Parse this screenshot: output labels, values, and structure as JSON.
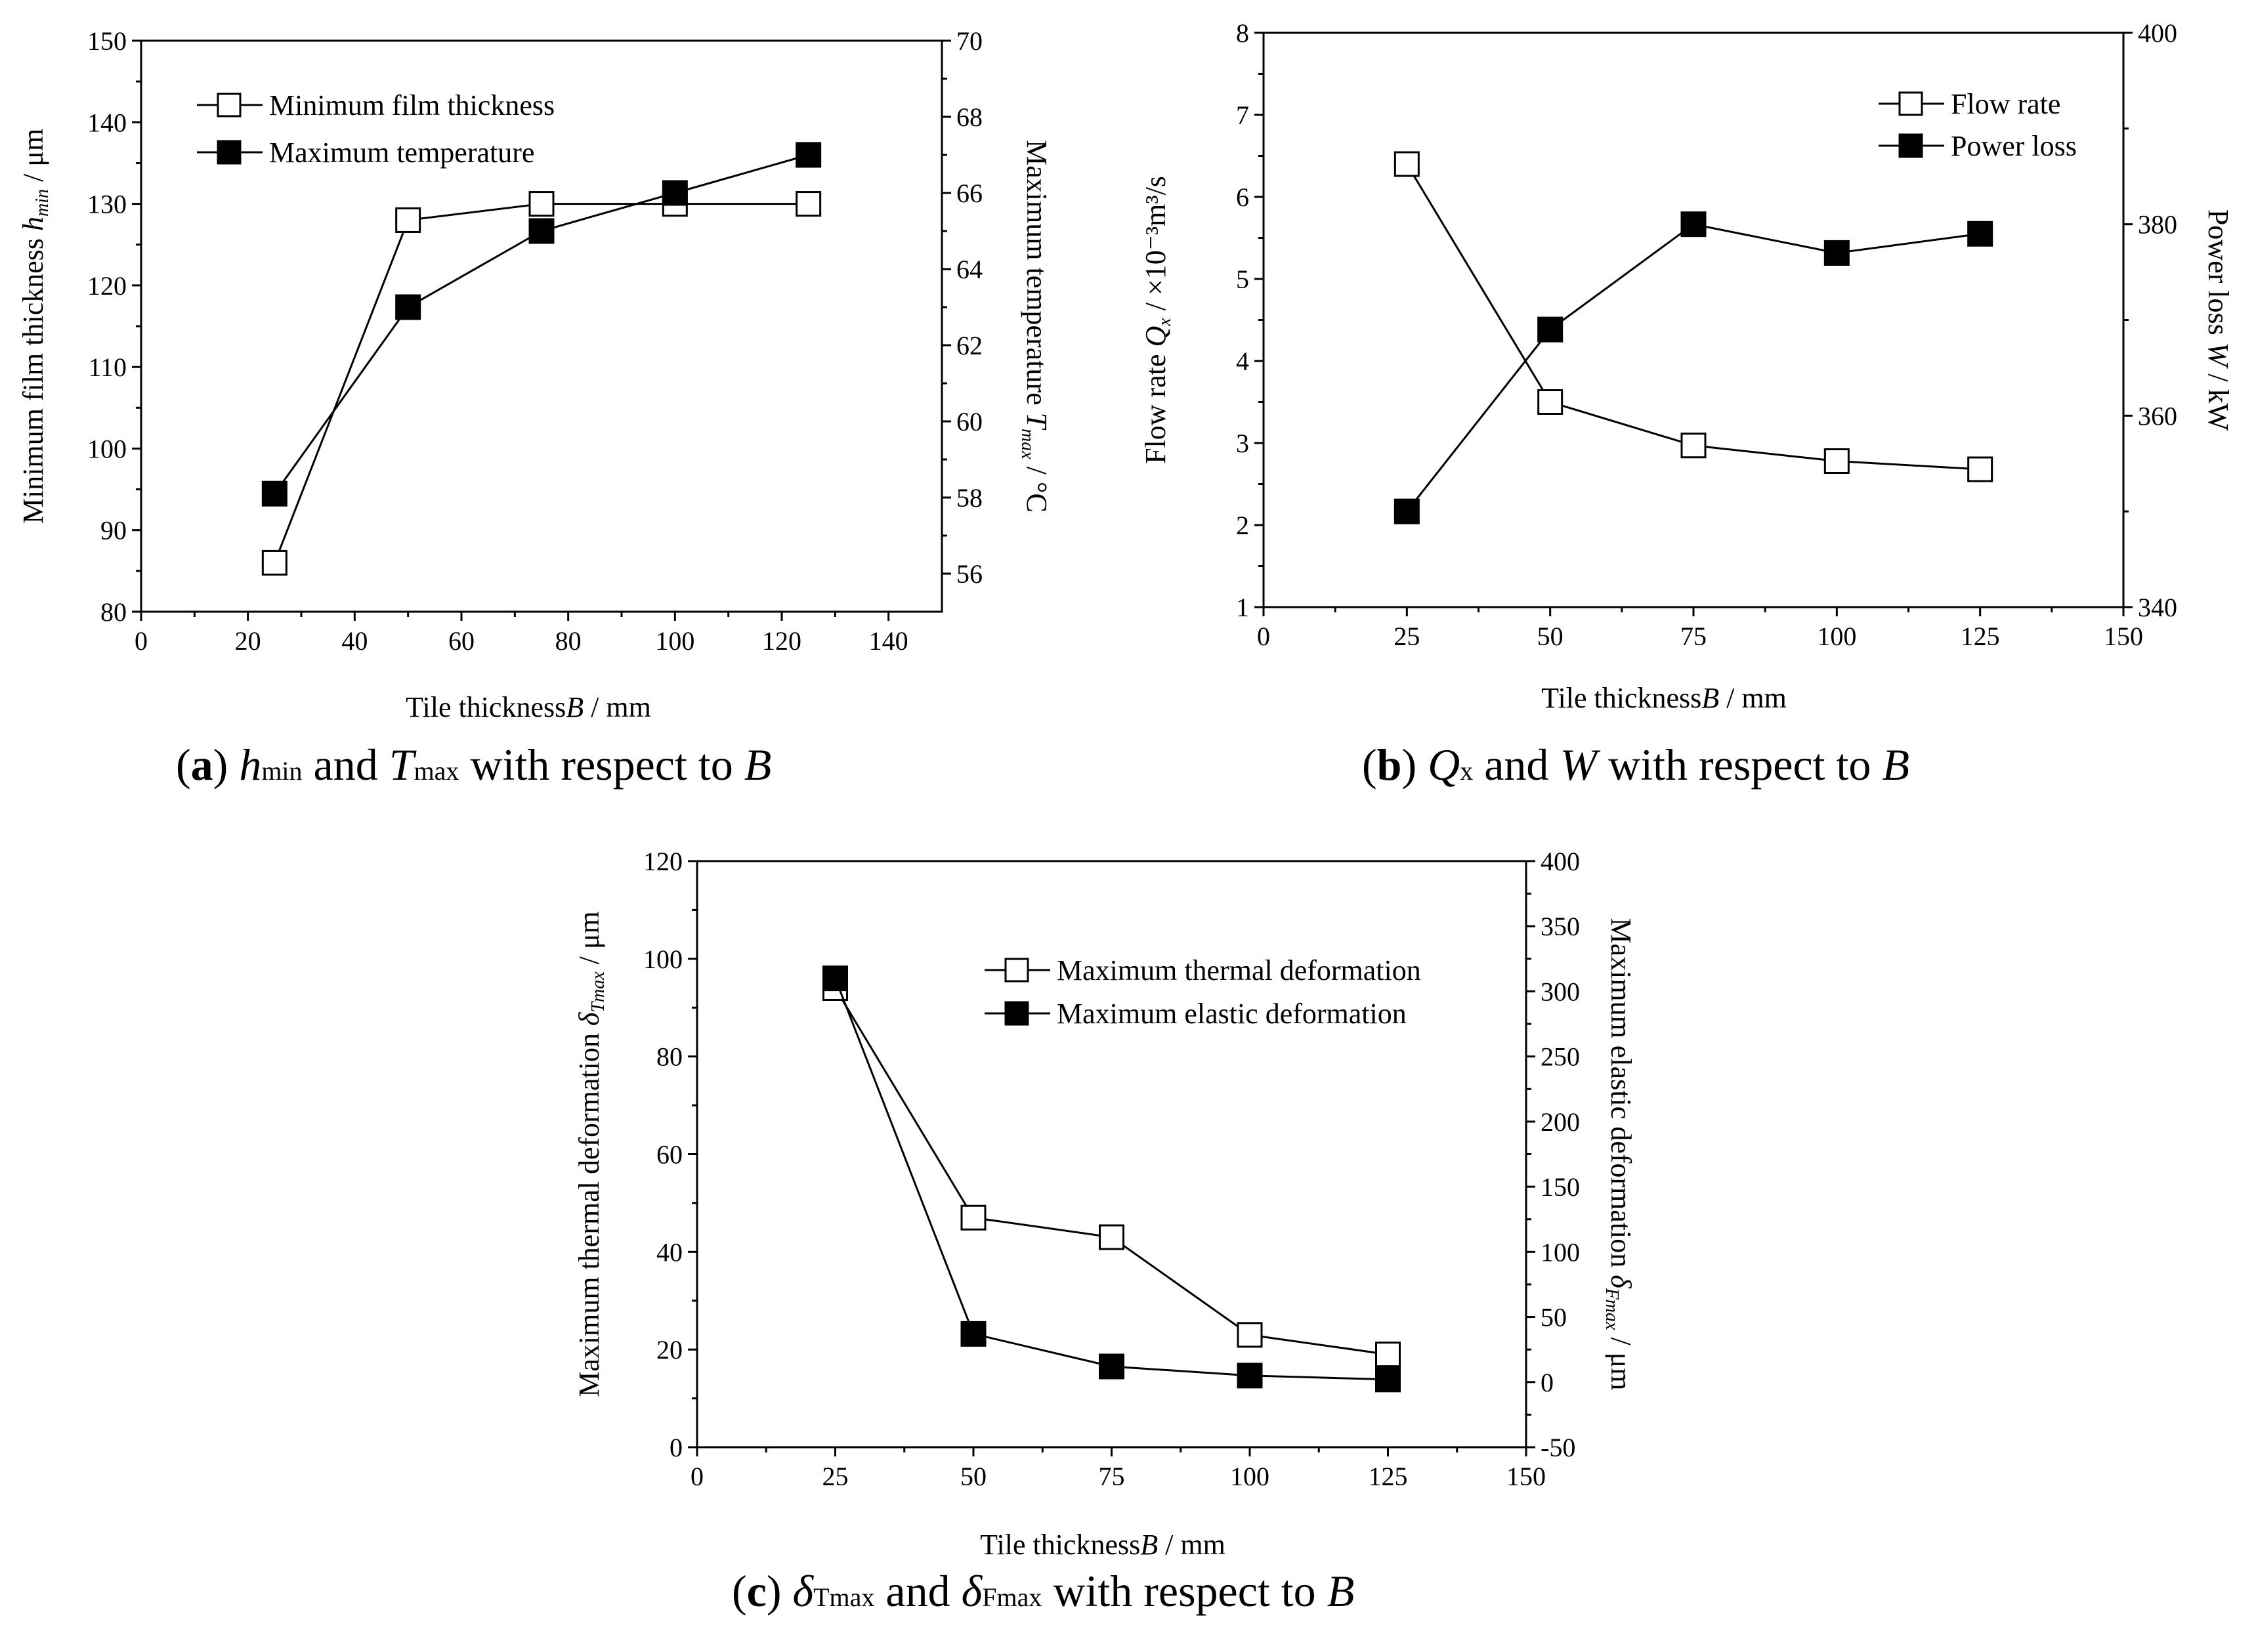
{
  "chart_data": [
    {
      "id": "a",
      "type": "line",
      "caption": {
        "prefix": "(",
        "letter": "a",
        "mid": ") ",
        "v1": "h",
        "v1sub": "min",
        "and": " and ",
        "v2": "T",
        "v2sub": "max",
        "tail": " with respect to ",
        "v3": "B"
      },
      "xlabel": {
        "text": "Tile thickness",
        "var": "B",
        "unit": " / mm"
      },
      "ylabel_left": {
        "text": "Minimum film thickness ",
        "var": "h",
        "sub": "min",
        "unit": " /  μm"
      },
      "ylabel_right": {
        "text": "Maximum temperature ",
        "var": "T",
        "sub": "max",
        "unit": " / °C"
      },
      "xlim": [
        0,
        150
      ],
      "xticks": [
        0,
        20,
        40,
        60,
        80,
        100,
        120,
        140
      ],
      "ylim_left": [
        80,
        150
      ],
      "yticks_left": [
        80,
        90,
        100,
        110,
        120,
        130,
        140,
        150
      ],
      "ylim_right": [
        55,
        70
      ],
      "yticks_right": [
        56,
        58,
        60,
        62,
        64,
        66,
        68,
        70
      ],
      "legend": [
        "Minimum film thickness",
        "Maximum temperature"
      ],
      "series": [
        {
          "name": "Minimum film thickness",
          "axis": "left",
          "marker": "open",
          "x": [
            25,
            50,
            75,
            100,
            125
          ],
          "y": [
            86,
            128,
            130,
            130,
            130
          ]
        },
        {
          "name": "Maximum temperature",
          "axis": "right",
          "marker": "filled",
          "x": [
            25,
            50,
            75,
            100,
            125
          ],
          "y": [
            58.1,
            63,
            65,
            66,
            67
          ]
        }
      ]
    },
    {
      "id": "b",
      "type": "line",
      "caption": {
        "prefix": "(",
        "letter": "b",
        "mid": ") ",
        "v1": "Q",
        "v1sub": "x",
        "and": " and ",
        "v2": "W",
        "v2sub": "",
        "tail": " with respect to ",
        "v3": "B"
      },
      "xlabel": {
        "text": "Tile thickness",
        "var": "B",
        "unit": " / mm"
      },
      "ylabel_left": {
        "text": "Flow rate ",
        "var": "Q",
        "sub": "x",
        "unit": " /  ×10⁻³m³/s"
      },
      "ylabel_right": {
        "text": "Power loss ",
        "var": "W",
        "sub": "",
        "unit": " / kW"
      },
      "xlim": [
        0,
        150
      ],
      "xticks": [
        0,
        25,
        50,
        75,
        100,
        125,
        150
      ],
      "ylim_left": [
        1,
        8
      ],
      "yticks_left": [
        1,
        2,
        3,
        4,
        5,
        6,
        7,
        8
      ],
      "ylim_right": [
        340,
        400
      ],
      "yticks_right": [
        340,
        360,
        380,
        400
      ],
      "legend": [
        "Flow rate",
        "Power loss"
      ],
      "series": [
        {
          "name": "Flow rate",
          "axis": "left",
          "marker": "open",
          "x": [
            25,
            50,
            75,
            100,
            125
          ],
          "y": [
            6.4,
            3.5,
            2.97,
            2.78,
            2.68
          ]
        },
        {
          "name": "Power loss",
          "axis": "right",
          "marker": "filled",
          "x": [
            25,
            50,
            75,
            100,
            125
          ],
          "y": [
            350,
            369,
            380,
            377,
            379
          ]
        }
      ]
    },
    {
      "id": "c",
      "type": "line",
      "caption": {
        "prefix": "(",
        "letter": "c",
        "mid": ") ",
        "v1": "δ",
        "v1sub": "Tmax",
        "and": " and ",
        "v2": "δ",
        "v2sub": "Fmax",
        "tail": " with respect to ",
        "v3": "B"
      },
      "xlabel": {
        "text": "Tile thickness",
        "var": "B",
        "unit": " / mm"
      },
      "ylabel_left": {
        "text": "Maximum thermal deformation ",
        "var": "δ",
        "sub": "Tmax",
        "unit": " /  μm"
      },
      "ylabel_right": {
        "text": "Maximum elastic deformation ",
        "var": "δ",
        "sub": "Fmax",
        "unit": " /  μm"
      },
      "xlim": [
        0,
        150
      ],
      "xticks": [
        0,
        25,
        50,
        75,
        100,
        125,
        150
      ],
      "ylim_left": [
        0,
        120
      ],
      "yticks_left": [
        0,
        20,
        40,
        60,
        80,
        100,
        120
      ],
      "ylim_right": [
        -50,
        400
      ],
      "yticks_right": [
        -50,
        0,
        50,
        100,
        150,
        200,
        250,
        300,
        350,
        400
      ],
      "legend": [
        "Maximum thermal deformation",
        "Maximum elastic deformation"
      ],
      "series": [
        {
          "name": "Maximum thermal deformation",
          "axis": "left",
          "marker": "open",
          "x": [
            25,
            50,
            75,
            100,
            125
          ],
          "y": [
            94,
            47,
            43,
            23,
            19
          ]
        },
        {
          "name": "Maximum elastic deformation",
          "axis": "right",
          "marker": "filled",
          "x": [
            25,
            50,
            75,
            100,
            125
          ],
          "y": [
            310,
            37,
            12,
            5,
            2
          ]
        }
      ]
    }
  ]
}
